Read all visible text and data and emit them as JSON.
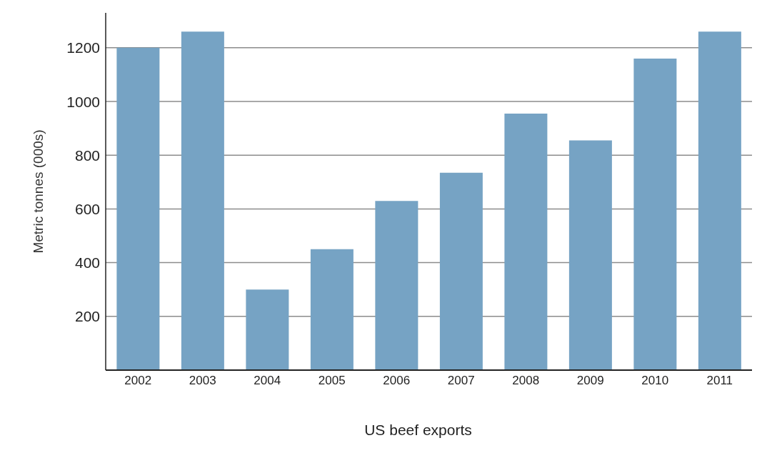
{
  "chart_data": {
    "type": "bar",
    "title": "US beef exports",
    "ylabel": "Metric tonnes (000s)",
    "categories": [
      "2002",
      "2003",
      "2004",
      "2005",
      "2006",
      "2007",
      "2008",
      "2009",
      "2010",
      "2011"
    ],
    "values": [
      1200,
      1260,
      300,
      450,
      630,
      735,
      955,
      855,
      1160,
      1260
    ],
    "color": "#76a3c4",
    "ylim": [
      0,
      1330
    ],
    "yticks": [
      {
        "value": 0,
        "label": null
      },
      200,
      400,
      600,
      800,
      1000,
      1200
    ],
    "grid": "y"
  }
}
